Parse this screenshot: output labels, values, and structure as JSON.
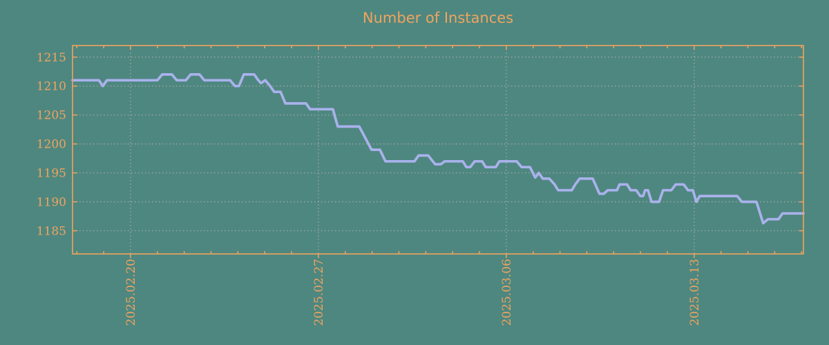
{
  "colors": {
    "background": "#4E8780",
    "accent": "#F0A45E",
    "grid": "#A6ACA7",
    "line": "#A9B2EB"
  },
  "chart_data": {
    "type": "line",
    "title": "Number of Instances",
    "xlabel": "",
    "ylabel": "",
    "legend": "none",
    "grid": "dotted",
    "x_unit": "days relative to 2025-02-20",
    "xlim": [
      -2.16,
      25.07
    ],
    "ylim": [
      1181,
      1217
    ],
    "y_ticks": [
      1185,
      1190,
      1195,
      1200,
      1205,
      1210,
      1215
    ],
    "x_major_ticks": [
      {
        "t": 0,
        "label": "2025.02.20"
      },
      {
        "t": 7,
        "label": "2025.02.27"
      },
      {
        "t": 14,
        "label": "2025.03.06"
      },
      {
        "t": 21,
        "label": "2025.03.13"
      }
    ],
    "x_minor_tick_step": 1,
    "series": [
      {
        "name": "instances",
        "points": [
          [
            -2.16,
            1211
          ],
          [
            -1.18,
            1211
          ],
          [
            -1.03,
            1210
          ],
          [
            -0.88,
            1211
          ],
          [
            1.0,
            1211
          ],
          [
            1.18,
            1212
          ],
          [
            1.54,
            1212
          ],
          [
            1.72,
            1211
          ],
          [
            2.06,
            1211
          ],
          [
            2.24,
            1212
          ],
          [
            2.57,
            1212
          ],
          [
            2.75,
            1211
          ],
          [
            3.71,
            1211
          ],
          [
            3.89,
            1210
          ],
          [
            4.04,
            1210
          ],
          [
            4.22,
            1212
          ],
          [
            4.61,
            1212
          ],
          [
            4.76,
            1211
          ],
          [
            4.86,
            1210.5
          ],
          [
            5.02,
            1211
          ],
          [
            5.2,
            1210
          ],
          [
            5.35,
            1209
          ],
          [
            5.59,
            1209
          ],
          [
            5.77,
            1207
          ],
          [
            6.54,
            1207
          ],
          [
            6.69,
            1206
          ],
          [
            7.54,
            1206
          ],
          [
            7.72,
            1203
          ],
          [
            8.52,
            1203
          ],
          [
            8.98,
            1199
          ],
          [
            9.29,
            1199
          ],
          [
            9.5,
            1197
          ],
          [
            10.58,
            1197
          ],
          [
            10.73,
            1198
          ],
          [
            11.09,
            1198
          ],
          [
            11.35,
            1196.5
          ],
          [
            11.56,
            1196.5
          ],
          [
            11.71,
            1197
          ],
          [
            12.38,
            1197
          ],
          [
            12.51,
            1196
          ],
          [
            12.66,
            1196
          ],
          [
            12.82,
            1197
          ],
          [
            13.1,
            1197
          ],
          [
            13.23,
            1196
          ],
          [
            13.61,
            1196
          ],
          [
            13.74,
            1197
          ],
          [
            14.39,
            1197
          ],
          [
            14.57,
            1196
          ],
          [
            14.88,
            1196
          ],
          [
            15.08,
            1194.2
          ],
          [
            15.21,
            1195
          ],
          [
            15.36,
            1194
          ],
          [
            15.6,
            1194
          ],
          [
            15.8,
            1193
          ],
          [
            15.93,
            1192
          ],
          [
            16.44,
            1192
          ],
          [
            16.57,
            1193
          ],
          [
            16.73,
            1194
          ],
          [
            17.22,
            1194
          ],
          [
            17.47,
            1191.4
          ],
          [
            17.63,
            1191.4
          ],
          [
            17.78,
            1192
          ],
          [
            18.12,
            1192
          ],
          [
            18.22,
            1193
          ],
          [
            18.5,
            1193
          ],
          [
            18.63,
            1192
          ],
          [
            18.84,
            1192
          ],
          [
            18.99,
            1191
          ],
          [
            19.1,
            1191
          ],
          [
            19.17,
            1192
          ],
          [
            19.28,
            1192
          ],
          [
            19.41,
            1190
          ],
          [
            19.69,
            1190
          ],
          [
            19.84,
            1192
          ],
          [
            20.15,
            1192
          ],
          [
            20.31,
            1193
          ],
          [
            20.61,
            1193
          ],
          [
            20.77,
            1192
          ],
          [
            20.95,
            1192
          ],
          [
            21.08,
            1190
          ],
          [
            21.21,
            1191
          ],
          [
            22.6,
            1191
          ],
          [
            22.78,
            1190
          ],
          [
            23.32,
            1190
          ],
          [
            23.57,
            1186.3
          ],
          [
            23.75,
            1187
          ],
          [
            24.14,
            1187
          ],
          [
            24.29,
            1188
          ],
          [
            25.07,
            1188
          ]
        ]
      }
    ]
  }
}
